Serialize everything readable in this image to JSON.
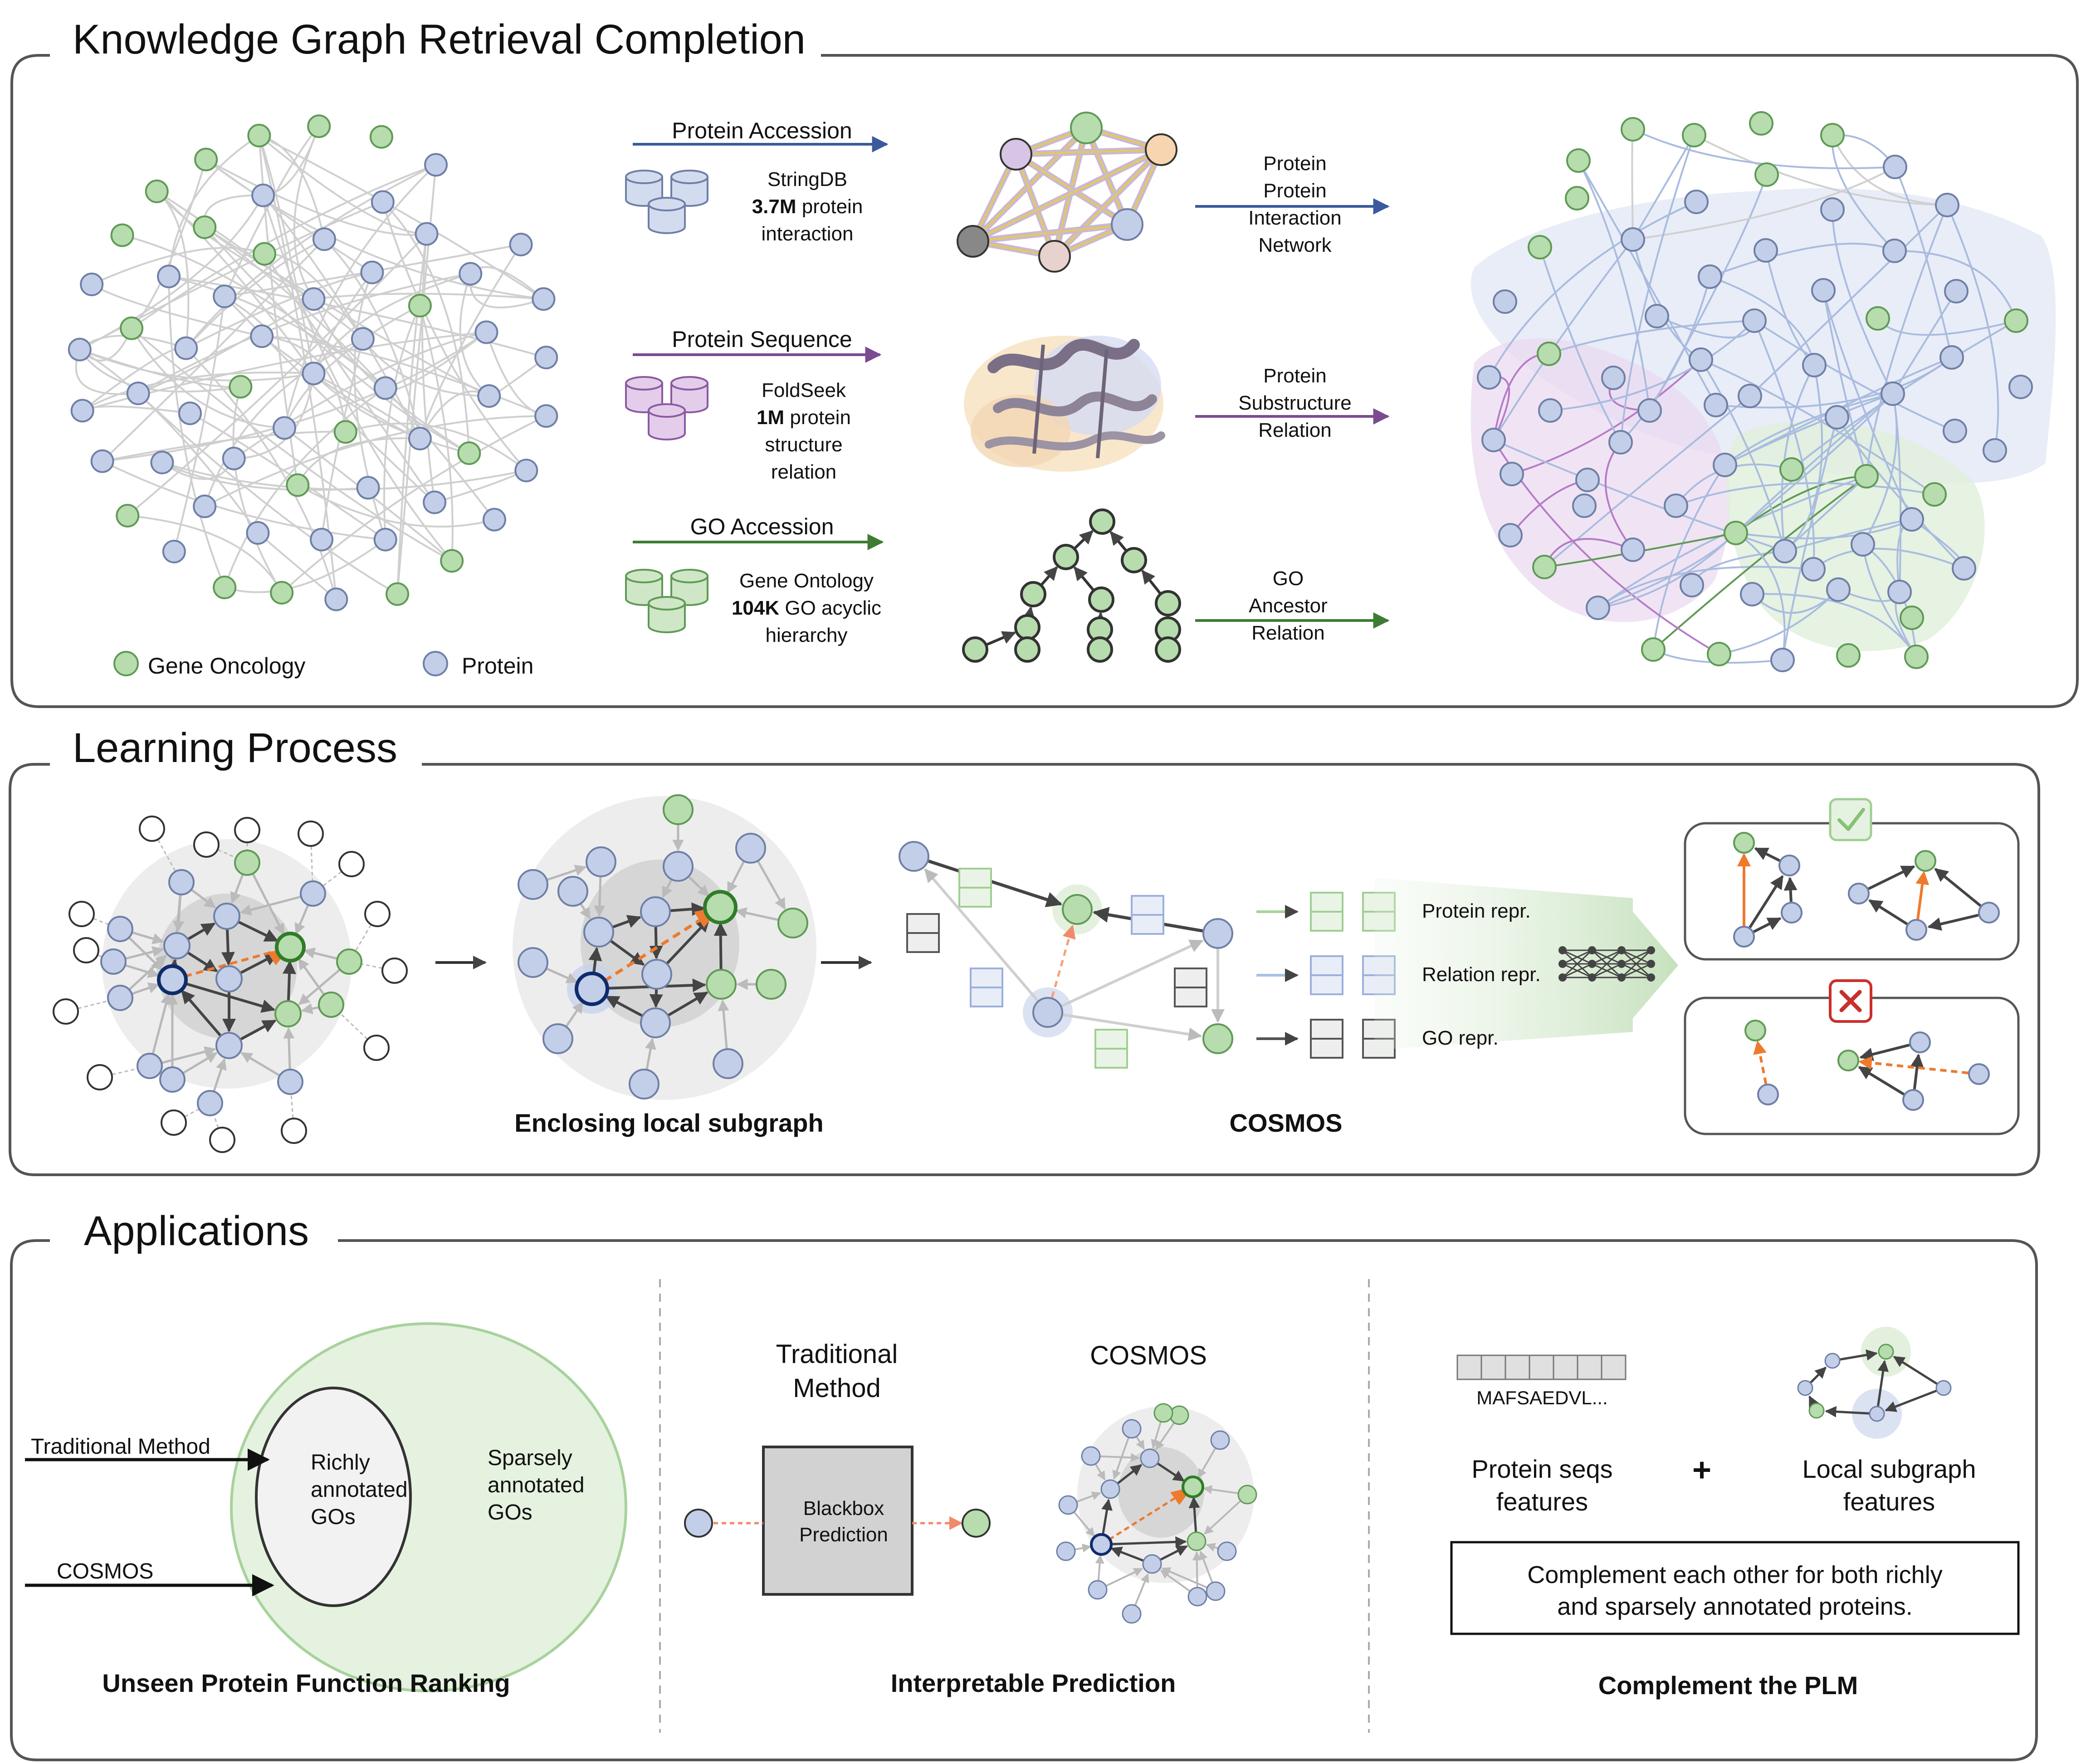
{
  "colors": {
    "go": "#b7dcae",
    "go_stroke": "#5f9a55",
    "protein": "#c3cfe8",
    "protein_stroke": "#6f7fa6",
    "blue_arrow": "#3a5a9c",
    "purple_arrow": "#7b4a90",
    "green_arrow": "#3f7b33",
    "orange": "#ee7a2e",
    "frame": "#555555",
    "edge": "#cfcfcf"
  },
  "kg": {
    "title": "Knowledge Graph Retrieval Completion",
    "legend_go": "Gene Oncology",
    "legend_protein": "Protein",
    "row1_arrow": "Protein Accession",
    "row1_db": [
      "StringDB",
      "3.7M protein",
      "interaction"
    ],
    "row1_out": [
      "Protein",
      "Protein",
      "Interaction",
      "Network"
    ],
    "row2_arrow": "Protein Sequence",
    "row2_db": [
      "FoldSeek",
      "1M protein",
      "structure",
      "relation"
    ],
    "row2_out": [
      "Protein",
      "Substructure",
      "Relation"
    ],
    "row3_arrow": "GO Accession",
    "row3_db": [
      "Gene Ontology",
      "104K GO acyclic",
      "hierarchy"
    ],
    "row3_out": [
      "GO",
      "Ancestor",
      "Relation"
    ]
  },
  "learning": {
    "title": "Learning Process",
    "subgraph_label": "Enclosing local subgraph",
    "cosmos_label": "COSMOS",
    "protein_repr": "Protein repr.",
    "relation_repr": "Relation repr.",
    "go_repr": "GO repr."
  },
  "apps": {
    "title": "Applications",
    "traditional_method": "Traditional Method",
    "cosmos": "COSMOS",
    "richly": [
      "Richly",
      "annotated",
      "GOs"
    ],
    "sparsely": [
      "Sparsely",
      "annotated",
      "GOs"
    ],
    "ranking_label": "Unseen Protein Function Ranking",
    "trad_title": [
      "Traditional",
      "Method"
    ],
    "blackbox": [
      "Blackbox",
      "Prediction"
    ],
    "cosmos_title": "COSMOS",
    "interp_label": "Interpretable Prediction",
    "seq_text": "MAFSAEDVL...",
    "seq_features": [
      "Protein seqs",
      "features"
    ],
    "plus": "+",
    "subgraph_features": [
      "Local subgraph",
      "features"
    ],
    "complement": [
      "Complement each other for both richly",
      "and sparsely annotated proteins."
    ],
    "plm_label": "Complement the PLM"
  }
}
